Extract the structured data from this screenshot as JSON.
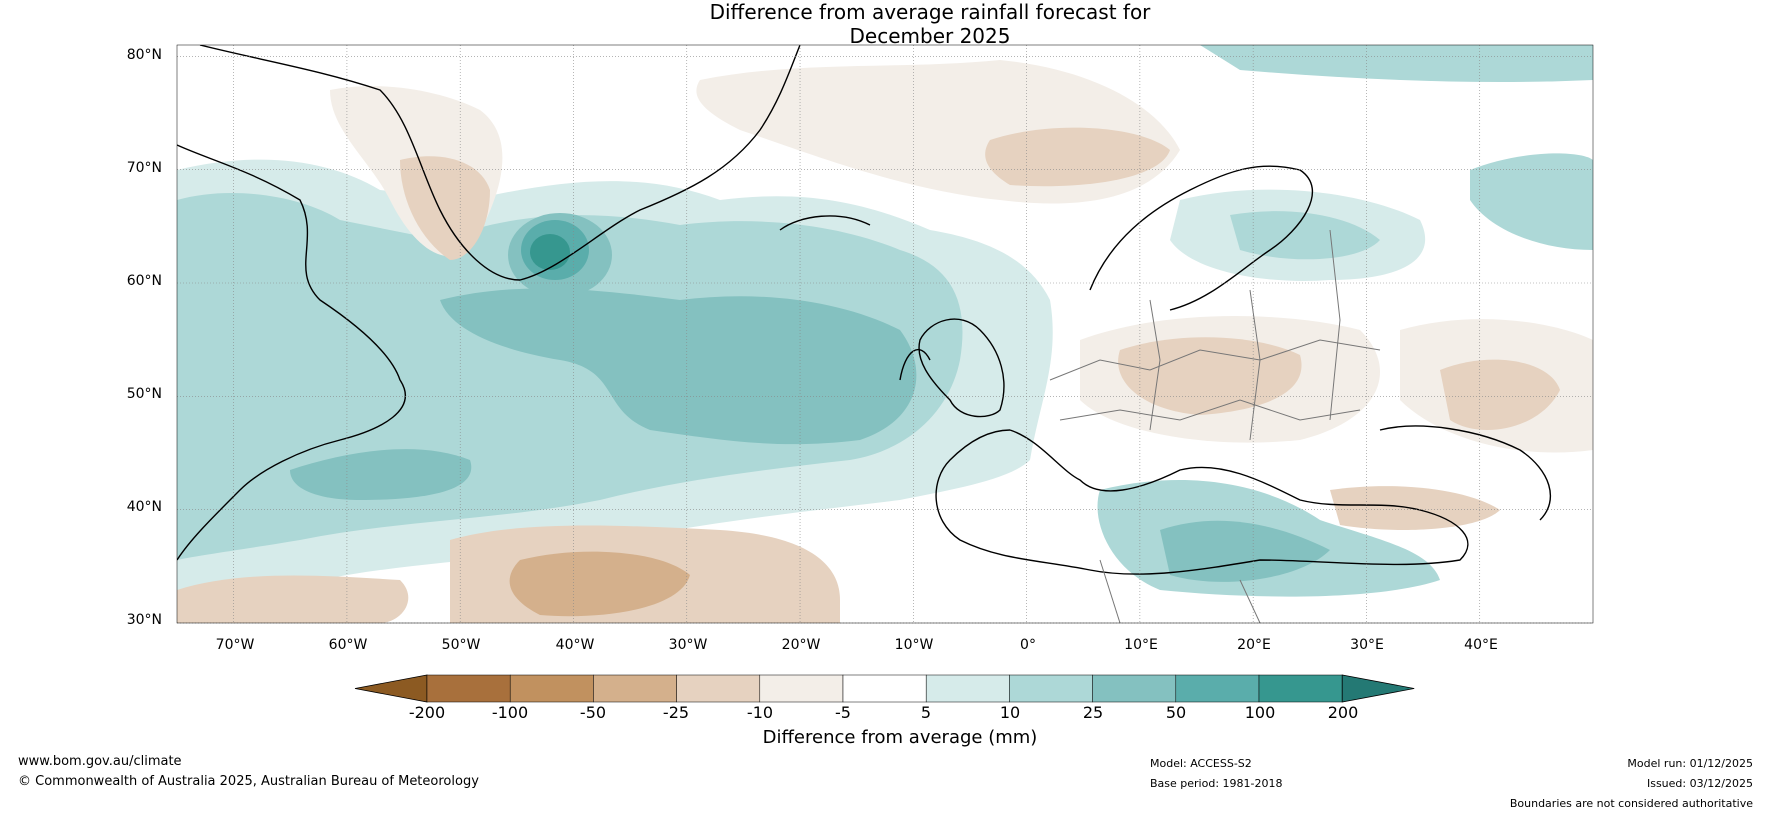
{
  "title": {
    "line1": "Difference from average rainfall forecast for",
    "line2": "December 2025"
  },
  "latitude_labels": [
    "80°N",
    "70°N",
    "60°N",
    "50°N",
    "40°N",
    "30°N"
  ],
  "longitude_labels": [
    "70°W",
    "60°W",
    "50°W",
    "40°W",
    "30°W",
    "20°W",
    "10°W",
    "0°",
    "10°E",
    "20°E",
    "30°E",
    "40°E"
  ],
  "colorbar": {
    "ticks": [
      "-200",
      "-100",
      "-50",
      "-25",
      "-10",
      "-5",
      "5",
      "10",
      "25",
      "50",
      "100",
      "200"
    ],
    "colors": [
      "#8c5a22",
      "#a8703c",
      "#c1915f",
      "#d4b08c",
      "#e6d2c0",
      "#f3eee8",
      "#ffffff",
      "#d6ebea",
      "#add8d7",
      "#84c1c0",
      "#5aadab",
      "#36978f",
      "#247974"
    ],
    "label": "Difference from average (mm)"
  },
  "footer": {
    "website": "www.bom.gov.au/climate",
    "copyright": "© Commonwealth of Australia 2025, Australian Bureau of Meteorology",
    "model": "Model: ACCESS-S2",
    "base_period": "Base period: 1981-2018",
    "model_run": "Model run: 01/12/2025",
    "issued": "Issued: 03/12/2025",
    "disclaimer": "Boundaries are not considered authoritative"
  }
}
